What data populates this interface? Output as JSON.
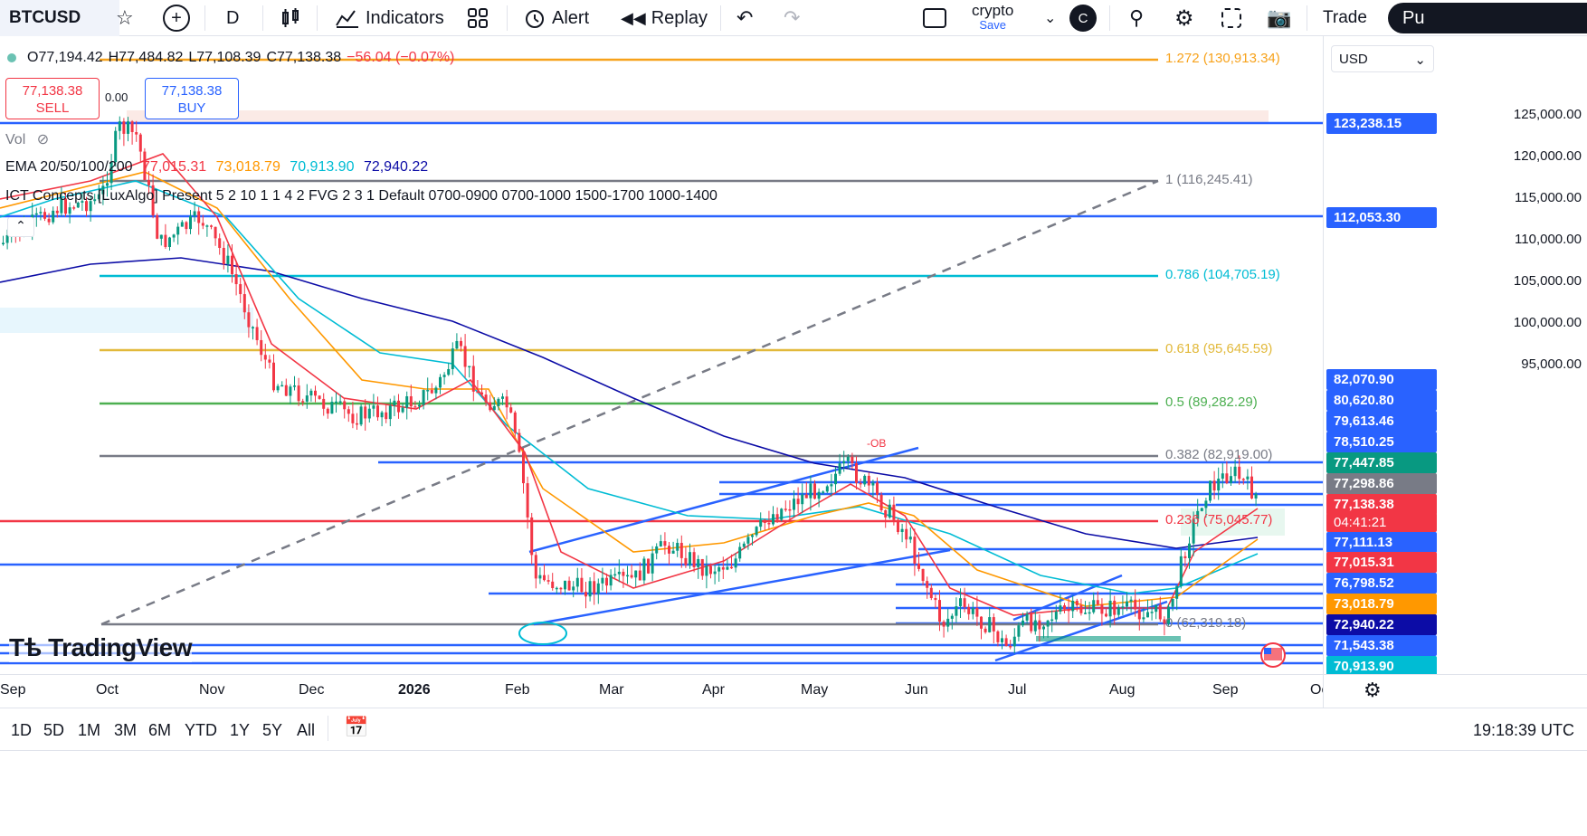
{
  "toolbar": {
    "symbol": "BTCUSD",
    "interval": "D",
    "indicators": "Indicators",
    "alert": "Alert",
    "replay": "Replay",
    "layout_name": "crypto",
    "layout_sub": "Save",
    "avatar": "C",
    "trade": "Trade",
    "publish": "Pu"
  },
  "ohlc": {
    "o": "O77,194.42",
    "h": "H77,484.82",
    "l": "L77,108.39",
    "c": "C77,138.38",
    "chg": "−56.04 (−0.07%)"
  },
  "sell": {
    "price": "77,138.38",
    "label": "SELL"
  },
  "buy": {
    "price": "77,138.38",
    "label": "BUY"
  },
  "spread": "0.00",
  "vol_label": "Vol",
  "ema": {
    "label": "EMA 20/50/100/200",
    "v20": "77,015.31",
    "v50": "73,018.79",
    "v100": "70,913.90",
    "v200": "72,940.22"
  },
  "ict_label": "ICT Concepts [LuxAlgo] Present 5 2 10 1 1 4 2 FVG 2 3 1 Default 0700-0900 0700-1000 1500-1700 1000-1400",
  "fib": [
    {
      "level": "1.272 (130,913.34)",
      "color": "#f7a21b"
    },
    {
      "level": "1 (116,245.41)",
      "color": "#787b86"
    },
    {
      "level": "0.786 (104,705.19)",
      "color": "#00bcd4"
    },
    {
      "level": "0.618 (95,645.59)",
      "color": "#e2b93b"
    },
    {
      "level": "0.5 (89,282.29)",
      "color": "#4caf50"
    },
    {
      "level": "0.382 (82,919.00)",
      "color": "#787b86"
    },
    {
      "level": "0.236 (75,045.77)",
      "color": "#f23645"
    },
    {
      "level": "0 (62,319.18)",
      "color": "#787b86"
    }
  ],
  "ob_label": "-OB",
  "currency": "USD",
  "price_ticks": [
    "125,000.00",
    "120,000.00",
    "115,000.00",
    "110,000.00",
    "105,000.00",
    "100,000.00",
    "95,000.00"
  ],
  "price_labels": [
    {
      "text": "123,238.15",
      "color": "#2962ff"
    },
    {
      "text": "112,053.30",
      "color": "#2962ff"
    },
    {
      "text": "82,070.90",
      "color": "#2962ff"
    },
    {
      "text": "80,620.80",
      "color": "#2962ff"
    },
    {
      "text": "79,613.46",
      "color": "#2962ff"
    },
    {
      "text": "78,510.25",
      "color": "#2962ff"
    },
    {
      "text": "77,447.85",
      "color": "#089981"
    },
    {
      "text": "77,298.86",
      "color": "#787b86"
    },
    {
      "text": "77,138.38",
      "color": "#f23645"
    },
    {
      "text": "04:41:21",
      "color": "#f23645"
    },
    {
      "text": "77,111.13",
      "color": "#2962ff"
    },
    {
      "text": "77,015.31",
      "color": "#f23645"
    },
    {
      "text": "76,798.52",
      "color": "#2962ff"
    },
    {
      "text": "73,018.79",
      "color": "#ff9800"
    },
    {
      "text": "72,940.22",
      "color": "#0c0ca6"
    },
    {
      "text": "71,543.38",
      "color": "#2962ff"
    },
    {
      "text": "70,913.90",
      "color": "#00bcd4"
    }
  ],
  "time_labels": [
    "Sep",
    "Oct",
    "Nov",
    "Dec",
    "2026",
    "Feb",
    "Mar",
    "Apr",
    "May",
    "Jun",
    "Jul",
    "Aug",
    "Sep",
    "Oc"
  ],
  "ranges": [
    "1D",
    "5D",
    "1M",
    "3M",
    "6M",
    "YTD",
    "1Y",
    "5Y",
    "All"
  ],
  "clock": "19:18:39 UTC",
  "logo": "TradingView",
  "icons": [
    "star-icon",
    "plus-icon",
    "bar-style-icon",
    "indicators-icon",
    "templates-icon",
    "alert-icon",
    "replay-icon",
    "undo-icon",
    "redo-icon",
    "layout-icon",
    "chevron-down-icon",
    "zoom-icon",
    "settings-icon",
    "fullscreen-icon",
    "camera-icon",
    "eye-off-icon",
    "calendar-icon",
    "flag-icon"
  ],
  "colors": {
    "up": "#089981",
    "down": "#f23645",
    "blue_line": "#2962ff",
    "ema20": "#f23645",
    "ema50": "#ff9800",
    "ema100": "#00bcd4",
    "ema200": "#0c0ca6"
  }
}
